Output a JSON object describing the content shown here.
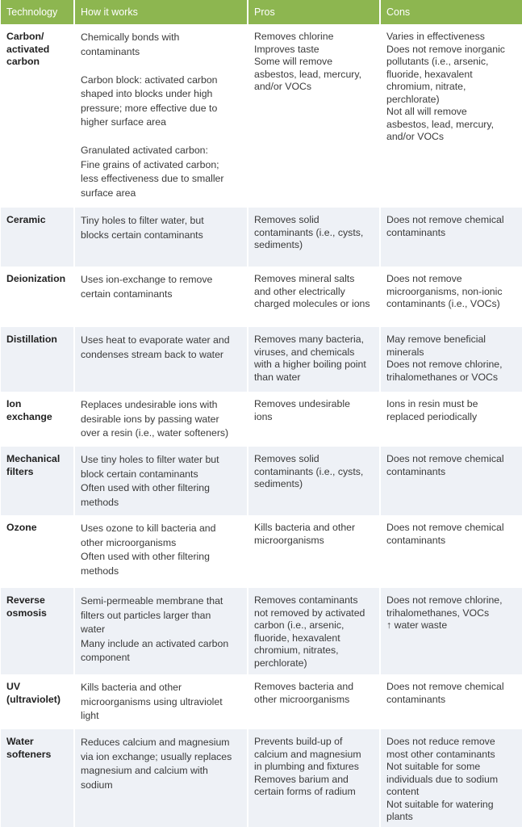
{
  "table": {
    "header_color": "#8db650",
    "alt_row_color": "#eef1f6",
    "headers": [
      "Technology",
      "How it works",
      "Pros",
      "Cons"
    ],
    "rows": [
      {
        "tech": [
          "Carbon/",
          "activated",
          "carbon"
        ],
        "how": [
          "Chemically bonds with",
          "contaminants",
          "",
          "Carbon block: activated carbon",
          "shaped into blocks under high",
          "pressure; more effective due to",
          "higher surface area",
          "",
          "Granulated activated carbon:",
          "Fine grains of activated carbon;",
          "less effectiveness due to smaller",
          "surface area"
        ],
        "pros": [
          "Removes chlorine",
          "Improves taste",
          "Some will remove",
          "asbestos, lead, mercury,",
          "and/or VOCs"
        ],
        "cons": [
          "Varies in effectiveness",
          "Does not remove inorganic",
          "pollutants (i.e., arsenic,",
          "fluoride, hexavalent",
          "chromium, nitrate,",
          "perchlorate)",
          "Not all will remove",
          "asbestos, lead, mercury,",
          "and/or VOCs"
        ]
      },
      {
        "tech": [
          "Ceramic"
        ],
        "how": [
          "Tiny holes to filter water, but",
          "blocks certain contaminants"
        ],
        "pros": [
          "Removes solid",
          "contaminants (i.e., cysts,",
          "sediments)"
        ],
        "cons": [
          "Does not remove chemical",
          "contaminants"
        ]
      },
      {
        "tech": [
          "Deionization"
        ],
        "how": [
          "Uses ion-exchange to remove",
          "certain contaminants"
        ],
        "pros": [
          "Removes mineral salts",
          "and other electrically",
          "charged molecules or ions"
        ],
        "cons": [
          "Does not remove",
          "microorganisms, non-ionic",
          "contaminants (i.e., VOCs)"
        ]
      },
      {
        "tech": [
          "Distillation"
        ],
        "how": [
          "Uses heat to evaporate water and",
          "condenses stream back to water"
        ],
        "pros": [
          "Removes many bacteria,",
          "viruses, and chemicals",
          "with a higher boiling point",
          "than water"
        ],
        "cons": [
          "May remove beneficial",
          "minerals",
          "Does not remove chlorine,",
          "trihalomethanes or VOCs"
        ]
      },
      {
        "tech": [
          "Ion",
          "exchange"
        ],
        "how": [
          "Replaces undesirable ions with",
          "desirable ions by passing water",
          "over a resin (i.e., water softeners)"
        ],
        "pros": [
          "Removes undesirable",
          "ions"
        ],
        "cons": [
          "Ions in resin must be",
          "replaced periodically"
        ]
      },
      {
        "tech": [
          "Mechanical",
          "filters"
        ],
        "how": [
          "Use tiny holes to filter water but",
          "block certain contaminants",
          "Often used with other filtering",
          "methods"
        ],
        "pros": [
          "Removes solid",
          "contaminants (i.e., cysts,",
          "sediments)"
        ],
        "cons": [
          "Does not remove chemical",
          "contaminants"
        ]
      },
      {
        "tech": [
          "Ozone"
        ],
        "how": [
          "Uses ozone to kill bacteria and",
          "other microorganisms",
          "Often used with other filtering",
          "methods"
        ],
        "pros": [
          "Kills bacteria and other",
          "microorganisms"
        ],
        "cons": [
          "Does not remove chemical",
          "contaminants"
        ]
      },
      {
        "tech": [
          "Reverse",
          "osmosis"
        ],
        "how": [
          "Semi-permeable membrane that",
          "filters out particles larger than",
          "water",
          "Many include an activated carbon",
          "component"
        ],
        "pros": [
          "Removes contaminants",
          "not removed by activated",
          "carbon (i.e., arsenic,",
          "fluoride, hexavalent",
          "chromium, nitrates,",
          "perchlorate)"
        ],
        "cons": [
          "Does not remove chlorine,",
          "trihalomethanes, VOCs",
          "↑ water waste"
        ]
      },
      {
        "tech": [
          "UV",
          "(ultraviolet)"
        ],
        "how": [
          "Kills bacteria and other",
          "microorganisms using ultraviolet",
          "light"
        ],
        "pros": [
          "Removes bacteria and",
          "other microorganisms"
        ],
        "cons": [
          "Does not remove chemical",
          "contaminants"
        ]
      },
      {
        "tech": [
          "Water",
          "softeners"
        ],
        "how": [
          "Reduces calcium and magnesium",
          "via ion exchange; usually replaces",
          "magnesium and calcium with",
          "sodium"
        ],
        "pros": [
          "Prevents build-up of",
          "calcium and magnesium",
          "in plumbing and fixtures",
          "Removes barium and",
          "certain forms of radium"
        ],
        "cons": [
          "Does not reduce remove",
          "most other contaminants",
          "Not suitable for some",
          "individuals due to sodium",
          "content",
          "Not suitable for watering",
          "plants"
        ]
      }
    ]
  }
}
